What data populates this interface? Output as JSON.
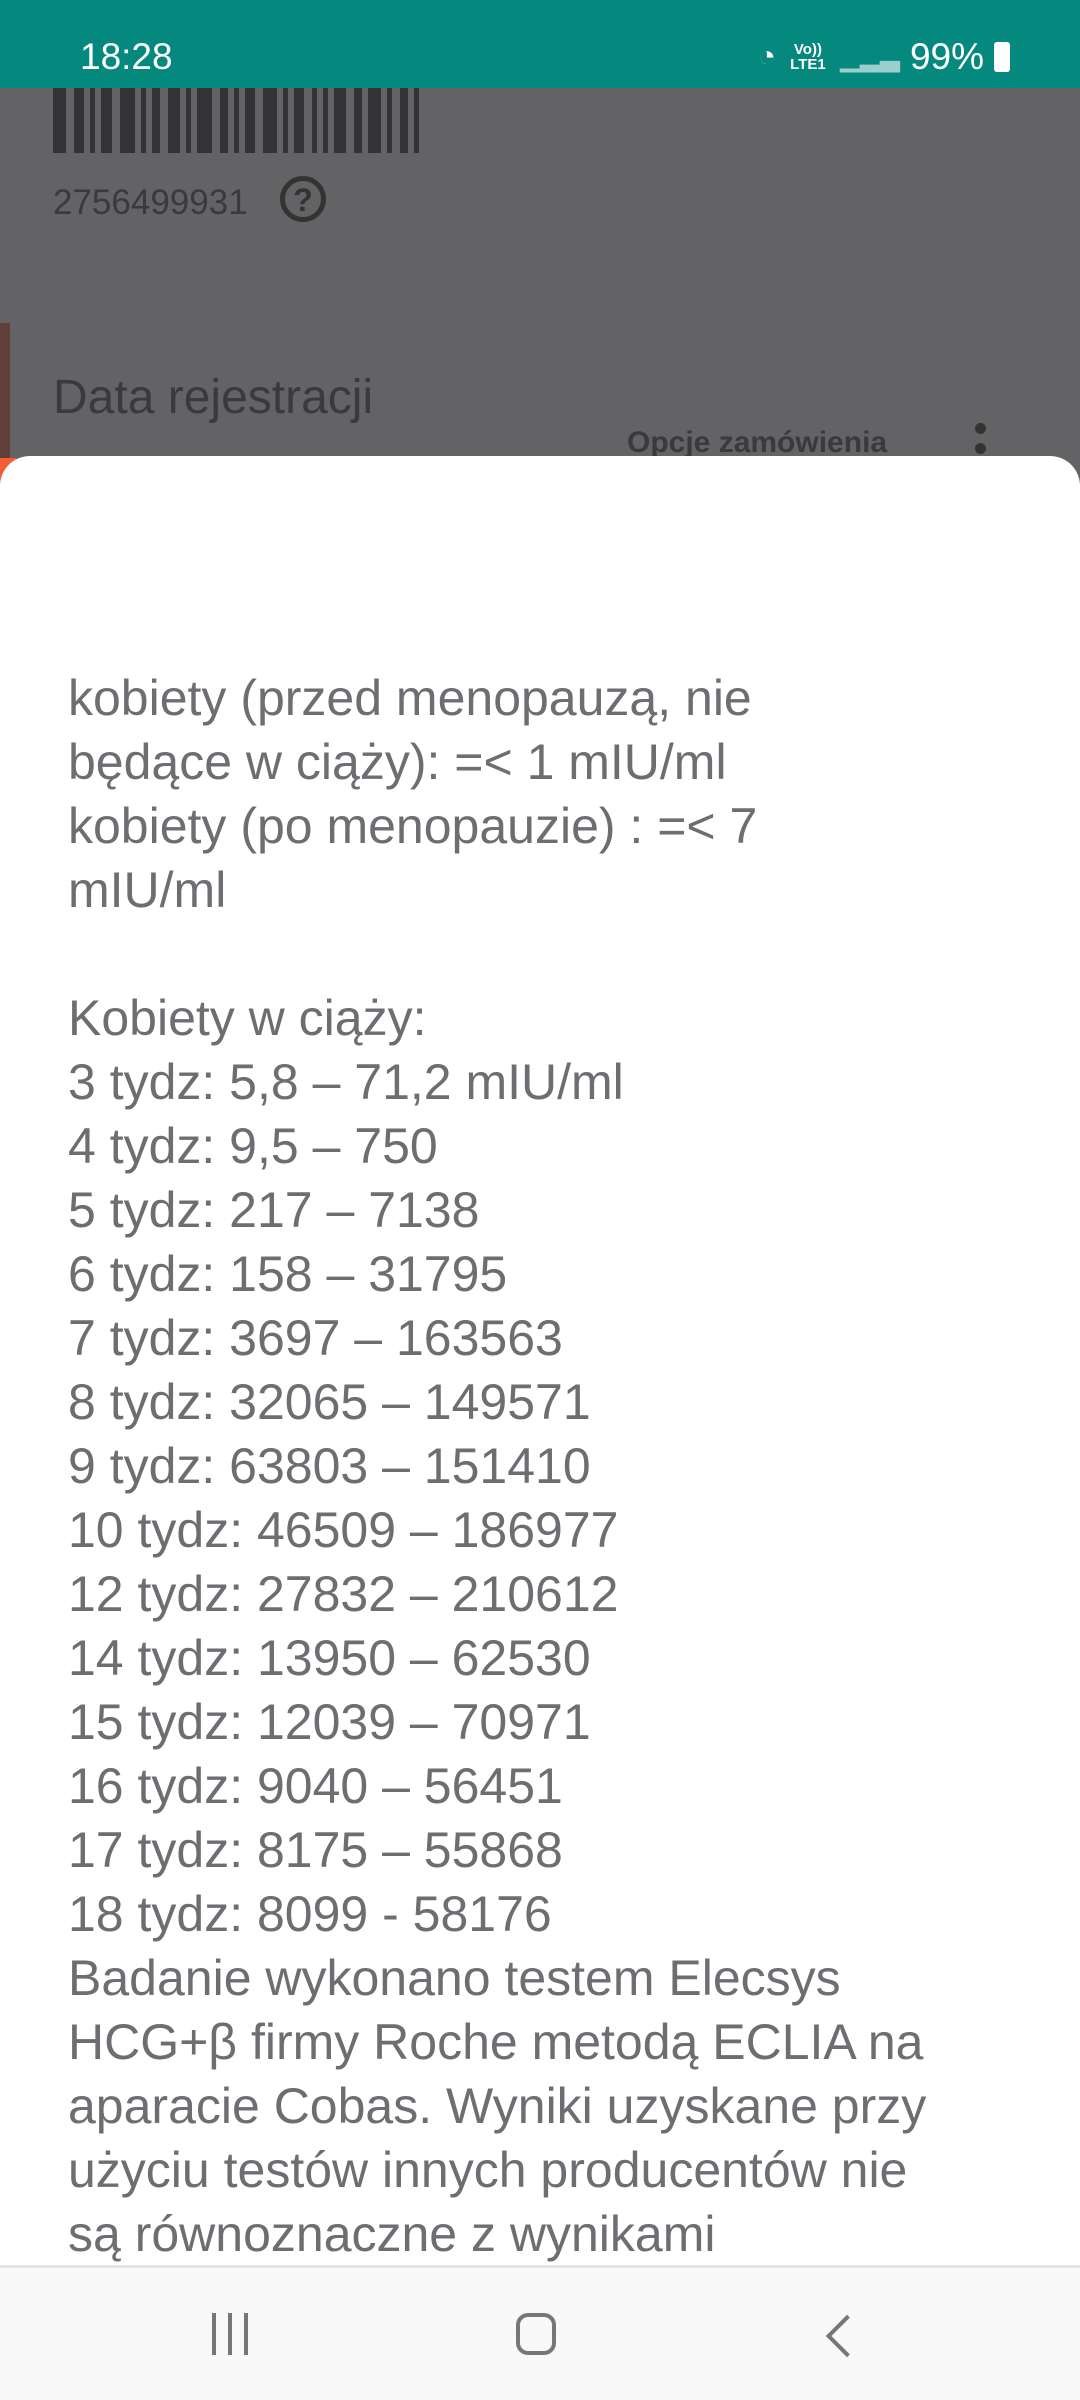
{
  "status_bar": {
    "time": "18:28",
    "network": "Vo)) LTE1",
    "battery": "99%",
    "color": "#05887d"
  },
  "background": {
    "barcode_number": "2756499931",
    "registration_label": "Data rejestracji",
    "order_options": "Opcje zamówienia"
  },
  "sheet": {
    "lines": [
      "kobiety (przed menopauzą, nie",
      "będące w ciąży): =< 1 mIU/ml",
      "kobiety (po menopauzie) : =< 7",
      "mIU/ml",
      "",
      "Kobiety w ciąży:",
      "3 tydz: 5,8 – 71,2 mIU/ml",
      "4 tydz: 9,5 – 750",
      "5 tydz: 217 – 7138",
      "6 tydz: 158 – 31795",
      "7 tydz: 3697 – 163563",
      "8 tydz: 32065 – 149571",
      "9 tydz: 63803 – 151410",
      "10 tydz: 46509 – 186977",
      "12 tydz: 27832 – 210612",
      "14 tydz: 13950 – 62530",
      "15 tydz: 12039 – 70971",
      "16 tydz: 9040 – 56451",
      "17 tydz: 8175 – 55868",
      "18 tydz: 8099 - 58176",
      "Badanie wykonano testem Elecsys",
      "HCG+β firmy Roche metodą ECLIA na",
      "aparacie Cobas. Wyniki uzyskane przy",
      "użyciu testów innych producentów nie",
      "są równoznaczne z wynikami"
    ]
  },
  "nav_bar": {
    "icons": [
      "recent-apps-icon",
      "home-icon",
      "back-icon"
    ]
  }
}
